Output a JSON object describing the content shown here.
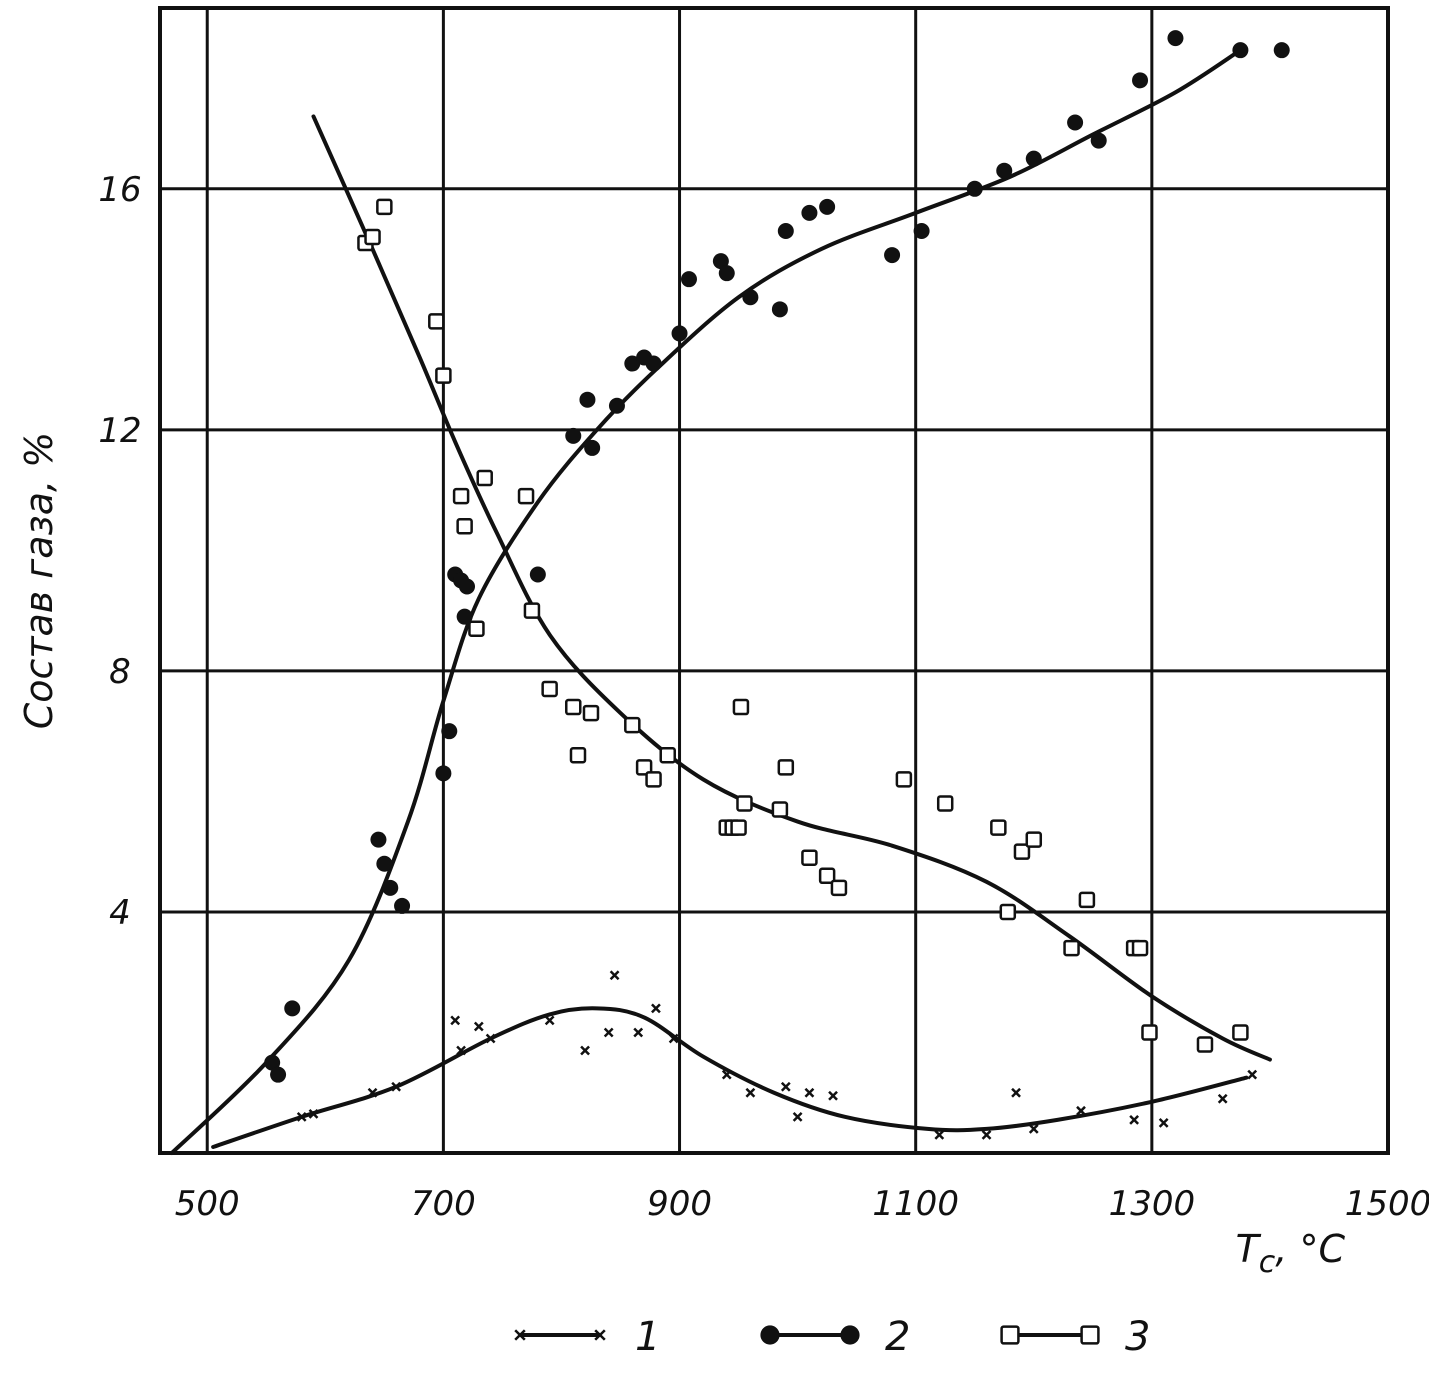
{
  "chart_data": {
    "type": "scatter",
    "title": "",
    "xlabel": "T",
    "xlabel_sub": "c",
    "xlabel_unit": ", °C",
    "ylabel": "Состав газа, %",
    "xlim": [
      460,
      1500
    ],
    "ylim": [
      0,
      19
    ],
    "xticks": [
      500,
      700,
      900,
      1100,
      1300,
      1500
    ],
    "xtick_labels": [
      "500",
      "700",
      "900",
      "1100",
      "1300",
      "1500"
    ],
    "yticks": [
      4,
      8,
      12,
      16
    ],
    "ytick_labels": [
      "4",
      "8",
      "12",
      "16"
    ],
    "grid": true,
    "legend": {
      "placement": "bottom",
      "entries": [
        {
          "label": "1",
          "marker": "x"
        },
        {
          "label": "2",
          "marker": "filled-circle"
        },
        {
          "label": "3",
          "marker": "open-square"
        }
      ]
    },
    "series": [
      {
        "label": "1",
        "marker": "x",
        "points": [
          [
            580,
            0.6
          ],
          [
            590,
            0.65
          ],
          [
            640,
            1.0
          ],
          [
            660,
            1.1
          ],
          [
            710,
            2.2
          ],
          [
            715,
            1.7
          ],
          [
            730,
            2.1
          ],
          [
            740,
            1.9
          ],
          [
            790,
            2.2
          ],
          [
            820,
            1.7
          ],
          [
            840,
            2.0
          ],
          [
            845,
            2.95
          ],
          [
            865,
            2.0
          ],
          [
            880,
            2.4
          ],
          [
            895,
            1.9
          ],
          [
            940,
            1.3
          ],
          [
            960,
            1.0
          ],
          [
            990,
            1.1
          ],
          [
            1000,
            0.6
          ],
          [
            1010,
            1.0
          ],
          [
            1030,
            0.95
          ],
          [
            1120,
            0.3
          ],
          [
            1160,
            0.3
          ],
          [
            1185,
            1.0
          ],
          [
            1200,
            0.4
          ],
          [
            1240,
            0.7
          ],
          [
            1285,
            0.55
          ],
          [
            1310,
            0.5
          ],
          [
            1360,
            0.9
          ],
          [
            1385,
            1.3
          ]
        ],
        "curve": [
          [
            505,
            0.1
          ],
          [
            580,
            0.6
          ],
          [
            660,
            1.1
          ],
          [
            740,
            1.9
          ],
          [
            790,
            2.3
          ],
          [
            830,
            2.4
          ],
          [
            870,
            2.25
          ],
          [
            920,
            1.6
          ],
          [
            980,
            1.0
          ],
          [
            1040,
            0.6
          ],
          [
            1110,
            0.4
          ],
          [
            1160,
            0.4
          ],
          [
            1220,
            0.55
          ],
          [
            1300,
            0.85
          ],
          [
            1380,
            1.25
          ]
        ]
      },
      {
        "label": "2",
        "marker": "filled-circle",
        "points": [
          [
            555,
            1.5
          ],
          [
            560,
            1.3
          ],
          [
            572,
            2.4
          ],
          [
            645,
            5.2
          ],
          [
            650,
            4.8
          ],
          [
            655,
            4.4
          ],
          [
            665,
            4.1
          ],
          [
            700,
            6.3
          ],
          [
            705,
            7.0
          ],
          [
            710,
            9.6
          ],
          [
            715,
            9.5
          ],
          [
            718,
            8.9
          ],
          [
            720,
            9.4
          ],
          [
            780,
            9.6
          ],
          [
            810,
            11.9
          ],
          [
            822,
            12.5
          ],
          [
            826,
            11.7
          ],
          [
            847,
            12.4
          ],
          [
            860,
            13.1
          ],
          [
            870,
            13.2
          ],
          [
            878,
            13.1
          ],
          [
            900,
            13.6
          ],
          [
            908,
            14.5
          ],
          [
            935,
            14.8
          ],
          [
            940,
            14.6
          ],
          [
            960,
            14.2
          ],
          [
            985,
            14.0
          ],
          [
            990,
            15.3
          ],
          [
            1010,
            15.6
          ],
          [
            1025,
            15.7
          ],
          [
            1080,
            14.9
          ],
          [
            1105,
            15.3
          ],
          [
            1150,
            16.0
          ],
          [
            1175,
            16.3
          ],
          [
            1200,
            16.5
          ],
          [
            1235,
            17.1
          ],
          [
            1255,
            16.8
          ],
          [
            1290,
            17.8
          ],
          [
            1320,
            18.5
          ],
          [
            1375,
            18.3
          ],
          [
            1410,
            18.3
          ]
        ],
        "curve": [
          [
            470,
            0.0
          ],
          [
            550,
            1.5
          ],
          [
            620,
            3.2
          ],
          [
            670,
            5.5
          ],
          [
            700,
            7.5
          ],
          [
            730,
            9.2
          ],
          [
            780,
            10.8
          ],
          [
            830,
            12.0
          ],
          [
            880,
            13.0
          ],
          [
            950,
            14.2
          ],
          [
            1020,
            15.0
          ],
          [
            1100,
            15.6
          ],
          [
            1180,
            16.2
          ],
          [
            1250,
            16.9
          ],
          [
            1320,
            17.6
          ],
          [
            1375,
            18.3
          ]
        ]
      },
      {
        "label": "3",
        "marker": "open-square",
        "points": [
          [
            634,
            15.1
          ],
          [
            640,
            15.2
          ],
          [
            650,
            15.7
          ],
          [
            694,
            13.8
          ],
          [
            700,
            12.9
          ],
          [
            715,
            10.9
          ],
          [
            718,
            10.4
          ],
          [
            728,
            8.7
          ],
          [
            735,
            11.2
          ],
          [
            770,
            10.9
          ],
          [
            775,
            9.0
          ],
          [
            790,
            7.7
          ],
          [
            810,
            7.4
          ],
          [
            814,
            6.6
          ],
          [
            825,
            7.3
          ],
          [
            860,
            7.1
          ],
          [
            870,
            6.4
          ],
          [
            878,
            6.2
          ],
          [
            890,
            6.6
          ],
          [
            940,
            5.4
          ],
          [
            945,
            5.4
          ],
          [
            950,
            5.4
          ],
          [
            955,
            5.8
          ],
          [
            952,
            7.4
          ],
          [
            985,
            5.7
          ],
          [
            990,
            6.4
          ],
          [
            1010,
            4.9
          ],
          [
            1025,
            4.6
          ],
          [
            1035,
            4.4
          ],
          [
            1090,
            6.2
          ],
          [
            1125,
            5.8
          ],
          [
            1170,
            5.4
          ],
          [
            1178,
            4.0
          ],
          [
            1190,
            5.0
          ],
          [
            1200,
            5.2
          ],
          [
            1232,
            3.4
          ],
          [
            1245,
            4.2
          ],
          [
            1285,
            3.4
          ],
          [
            1290,
            3.4
          ],
          [
            1298,
            2.0
          ],
          [
            1345,
            1.8
          ],
          [
            1375,
            2.0
          ]
        ],
        "curve": [
          [
            590,
            17.2
          ],
          [
            640,
            15.0
          ],
          [
            680,
            13.2
          ],
          [
            710,
            11.8
          ],
          [
            745,
            10.3
          ],
          [
            790,
            8.6
          ],
          [
            850,
            7.3
          ],
          [
            920,
            6.2
          ],
          [
            1000,
            5.5
          ],
          [
            1080,
            5.1
          ],
          [
            1160,
            4.5
          ],
          [
            1230,
            3.6
          ],
          [
            1300,
            2.6
          ],
          [
            1360,
            1.9
          ],
          [
            1400,
            1.55
          ]
        ]
      }
    ]
  }
}
